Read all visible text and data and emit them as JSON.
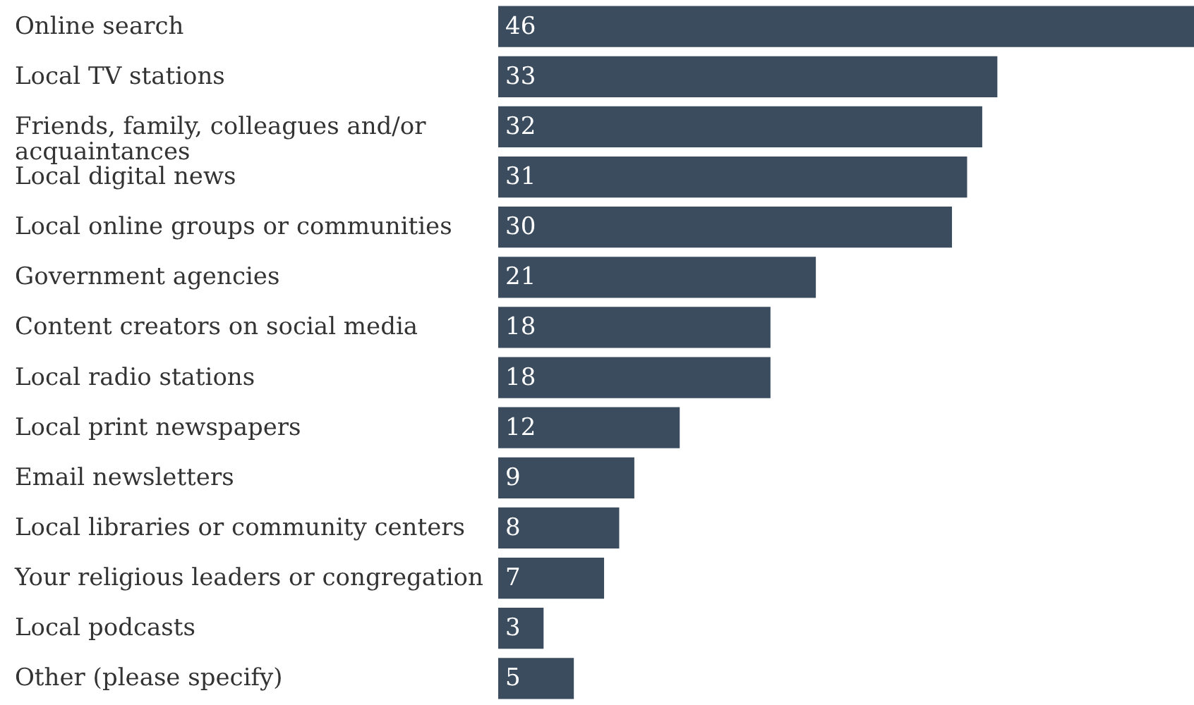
{
  "chart_data": {
    "type": "bar",
    "orientation": "horizontal",
    "data_labels": true,
    "color": "#3a4c5e",
    "categories": [
      "Online search",
      "Local TV stations",
      "Friends, family, colleagues and/or acquaintances",
      "Local digital news",
      "Local online groups or communities",
      "Government agencies",
      "Content creators on social media",
      "Local radio stations",
      "Local print newspapers",
      "Email newsletters",
      "Local libraries or community centers",
      "Your religious leaders or congregation",
      "Local podcasts",
      "Other (please specify)"
    ],
    "values": [
      46,
      33,
      32,
      31,
      30,
      21,
      18,
      18,
      12,
      9,
      8,
      7,
      3,
      5
    ]
  }
}
